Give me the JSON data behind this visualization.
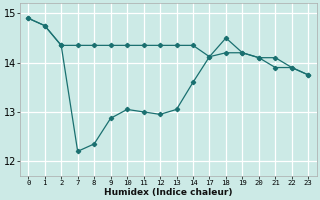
{
  "xlabel": "Humidex (Indice chaleur)",
  "bg_color": "#cceae6",
  "line_color": "#1a7070",
  "grid_color": "#ffffff",
  "ylim": [
    11.7,
    15.2
  ],
  "yticks": [
    12,
    13,
    14,
    15
  ],
  "xtick_labels": [
    "0",
    "1",
    "2",
    "7",
    "8",
    "9",
    "10",
    "11",
    "12",
    "13",
    "14",
    "17",
    "18",
    "19",
    "20",
    "21",
    "22",
    "23"
  ],
  "n_xticks": 18,
  "line1_y": [
    14.9,
    14.75,
    14.35,
    14.35,
    14.35,
    14.35,
    14.35,
    14.35,
    14.35,
    14.35,
    14.35,
    14.12,
    14.2,
    14.2,
    14.1,
    14.1,
    13.9,
    13.75
  ],
  "line2_y": [
    14.9,
    14.75,
    14.35,
    12.2,
    12.35,
    12.87,
    13.05,
    13.0,
    12.95,
    13.05,
    13.6,
    14.12,
    14.5,
    14.2,
    14.1,
    13.9,
    13.9,
    13.75
  ]
}
